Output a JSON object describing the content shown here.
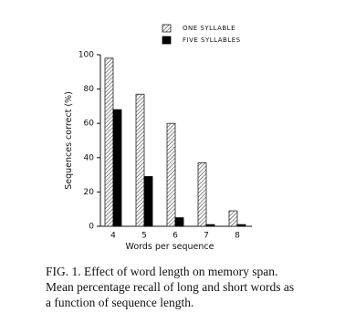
{
  "chart_data": {
    "type": "bar",
    "categories": [
      "4",
      "5",
      "6",
      "7",
      "8"
    ],
    "x_label": "Words per sequence",
    "y_label": "Sequences correct (%)",
    "ylim": [
      0,
      100
    ],
    "yticks": [
      0,
      20,
      40,
      60,
      80,
      100
    ],
    "series": [
      {
        "name": "ONE SYLLABLE",
        "color": "#222222",
        "fill": "hatched",
        "values": [
          98,
          77,
          60,
          37,
          9
        ]
      },
      {
        "name": "FIVE SYLLABLES",
        "color": "#000000",
        "fill": "solid",
        "values": [
          68,
          29,
          5,
          1,
          1
        ]
      }
    ]
  },
  "caption": [
    "FIG. 1. Effect of word length on memory span.",
    "Mean percentage recall of long and short words as",
    "a function of sequence length."
  ]
}
